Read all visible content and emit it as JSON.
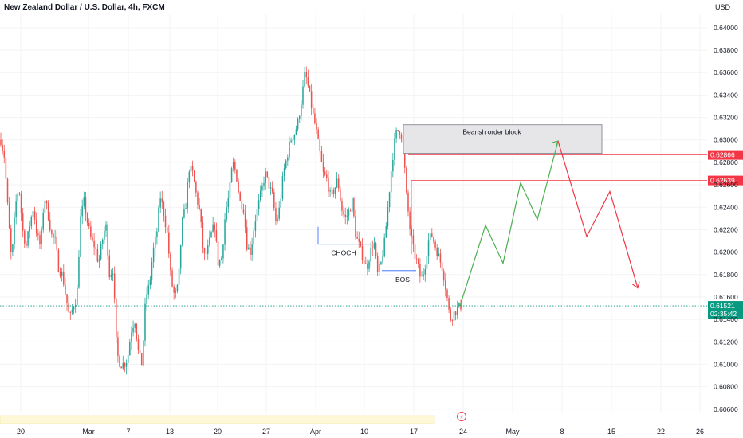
{
  "header": {
    "title": "New Zealand Dollar / U.S. Dollar, 4h, FXCM",
    "currency": "USD"
  },
  "colors": {
    "up": "#26a69a",
    "down": "#ef5350",
    "current": "#089981",
    "resistance": "#f23645",
    "forecast_up": "#4caf50",
    "forecast_down": "#f23645",
    "order_block_fill": "#e6e6e9",
    "order_block_border": "#787b86"
  },
  "chart_data": {
    "type": "candlestick",
    "symbol": "NZDUSD",
    "timeframe": "4h",
    "ylim": [
      0.6057,
      0.6412
    ],
    "y_ticks": [
      "0.64000",
      "0.63800",
      "0.63600",
      "0.63400",
      "0.63200",
      "0.63000",
      "0.62800",
      "0.62600",
      "0.62400",
      "0.62200",
      "0.62000",
      "0.61800",
      "0.61600",
      "0.61400",
      "0.61200",
      "0.61000",
      "0.60800",
      "0.60600"
    ],
    "x_ticks": [
      "20",
      "Mar",
      "7",
      "13",
      "20",
      "27",
      "Apr",
      "10",
      "17",
      "24",
      "May",
      "8",
      "15",
      "22",
      "26"
    ],
    "price_path": [
      [
        0.63,
        0.6285
      ],
      [
        0.6235,
        0.619
      ],
      [
        0.624,
        0.626
      ],
      [
        0.622,
        0.6205
      ],
      [
        0.6225,
        0.624
      ],
      [
        0.6215,
        0.6205
      ],
      [
        0.625,
        0.6235
      ],
      [
        0.6215,
        0.621
      ],
      [
        0.6185,
        0.618
      ],
      [
        0.616,
        0.614
      ],
      [
        0.6152,
        0.616
      ],
      [
        0.623,
        0.6245
      ],
      [
        0.6225,
        0.621
      ],
      [
        0.6205,
        0.619
      ],
      [
        0.621,
        0.6225
      ],
      [
        0.618,
        0.6185
      ],
      [
        0.611,
        0.61
      ],
      [
        0.61,
        0.6105
      ],
      [
        0.613,
        0.614
      ],
      [
        0.611,
        0.61
      ],
      [
        0.616,
        0.617
      ],
      [
        0.62,
        0.6215
      ],
      [
        0.625,
        0.6235
      ],
      [
        0.6215,
        0.6175
      ],
      [
        0.616,
        0.617
      ],
      [
        0.6225,
        0.624
      ],
      [
        0.6275,
        0.627
      ],
      [
        0.625,
        0.6235
      ],
      [
        0.6195,
        0.62
      ],
      [
        0.6215,
        0.6225
      ],
      [
        0.619,
        0.6195
      ],
      [
        0.6235,
        0.625
      ],
      [
        0.628,
        0.627
      ],
      [
        0.6245,
        0.624
      ],
      [
        0.6205,
        0.62
      ],
      [
        0.6225,
        0.624
      ],
      [
        0.6255,
        0.627
      ],
      [
        0.626,
        0.625
      ],
      [
        0.6225,
        0.624
      ],
      [
        0.627,
        0.6285
      ],
      [
        0.63,
        0.6305
      ],
      [
        0.6315,
        0.6335
      ],
      [
        0.636,
        0.6345
      ],
      [
        0.6325,
        0.631
      ],
      [
        0.629,
        0.627
      ],
      [
        0.6265,
        0.625
      ],
      [
        0.6255,
        0.6265
      ],
      [
        0.624,
        0.623
      ],
      [
        0.6235,
        0.6245
      ],
      [
        0.6215,
        0.6205
      ],
      [
        0.6195,
        0.6185
      ],
      [
        0.62,
        0.621
      ],
      [
        0.618,
        0.619
      ],
      [
        0.621,
        0.6245
      ],
      [
        0.628,
        0.6305
      ],
      [
        0.631,
        0.63
      ],
      [
        0.625,
        0.622
      ],
      [
        0.62,
        0.619
      ],
      [
        0.6175,
        0.6185
      ],
      [
        0.621,
        0.6215
      ],
      [
        0.6205,
        0.6195
      ],
      [
        0.6185,
        0.6165
      ],
      [
        0.614,
        0.6145
      ],
      [
        0.615,
        0.6152
      ]
    ],
    "annotations": {
      "order_block": {
        "label": "Bearish order block",
        "top": 0.63135,
        "bottom": 0.6288
      },
      "choch": {
        "label": "CHOCH",
        "level": 0.6207
      },
      "bos": {
        "label": "BOS",
        "level": 0.61835
      },
      "resistance_levels": [
        {
          "label": "0.62866",
          "value": 0.62866
        },
        {
          "label": "0.62639",
          "value": 0.62639
        }
      ],
      "current": {
        "label": "0.61521",
        "countdown": "02:35:42",
        "value": 0.61521
      },
      "forecast_up": [
        0.61521,
        0.6224,
        0.619,
        0.6262,
        0.6229,
        0.6299
      ],
      "forecast_down": [
        0.6299,
        0.6214,
        0.6254,
        0.6168
      ]
    }
  }
}
